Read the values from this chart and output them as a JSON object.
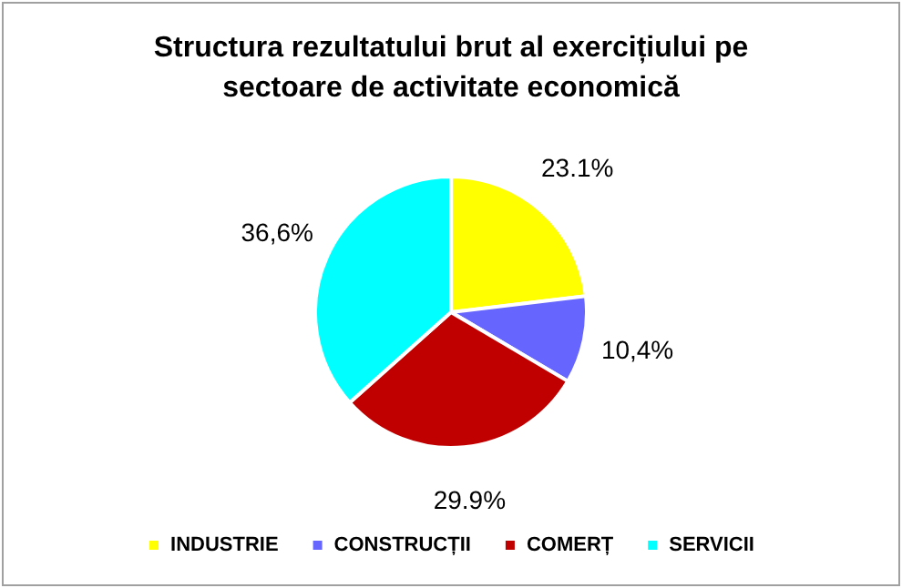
{
  "chart_data": {
    "type": "pie",
    "title": "Structura rezultatului brut al exercițiului pe sectoare de activitate economică",
    "categories": [
      "INDUSTRIE",
      "CONSTRUCȚII",
      "COMERȚ",
      "SERVICII"
    ],
    "values": [
      23.1,
      10.4,
      29.9,
      36.6
    ],
    "value_labels": [
      "23.1%",
      "10,4%",
      "29.9%",
      "36,6%"
    ],
    "colors": [
      "#ffff00",
      "#6666ff",
      "#c00000",
      "#00ffff"
    ],
    "legend": "bottom"
  }
}
